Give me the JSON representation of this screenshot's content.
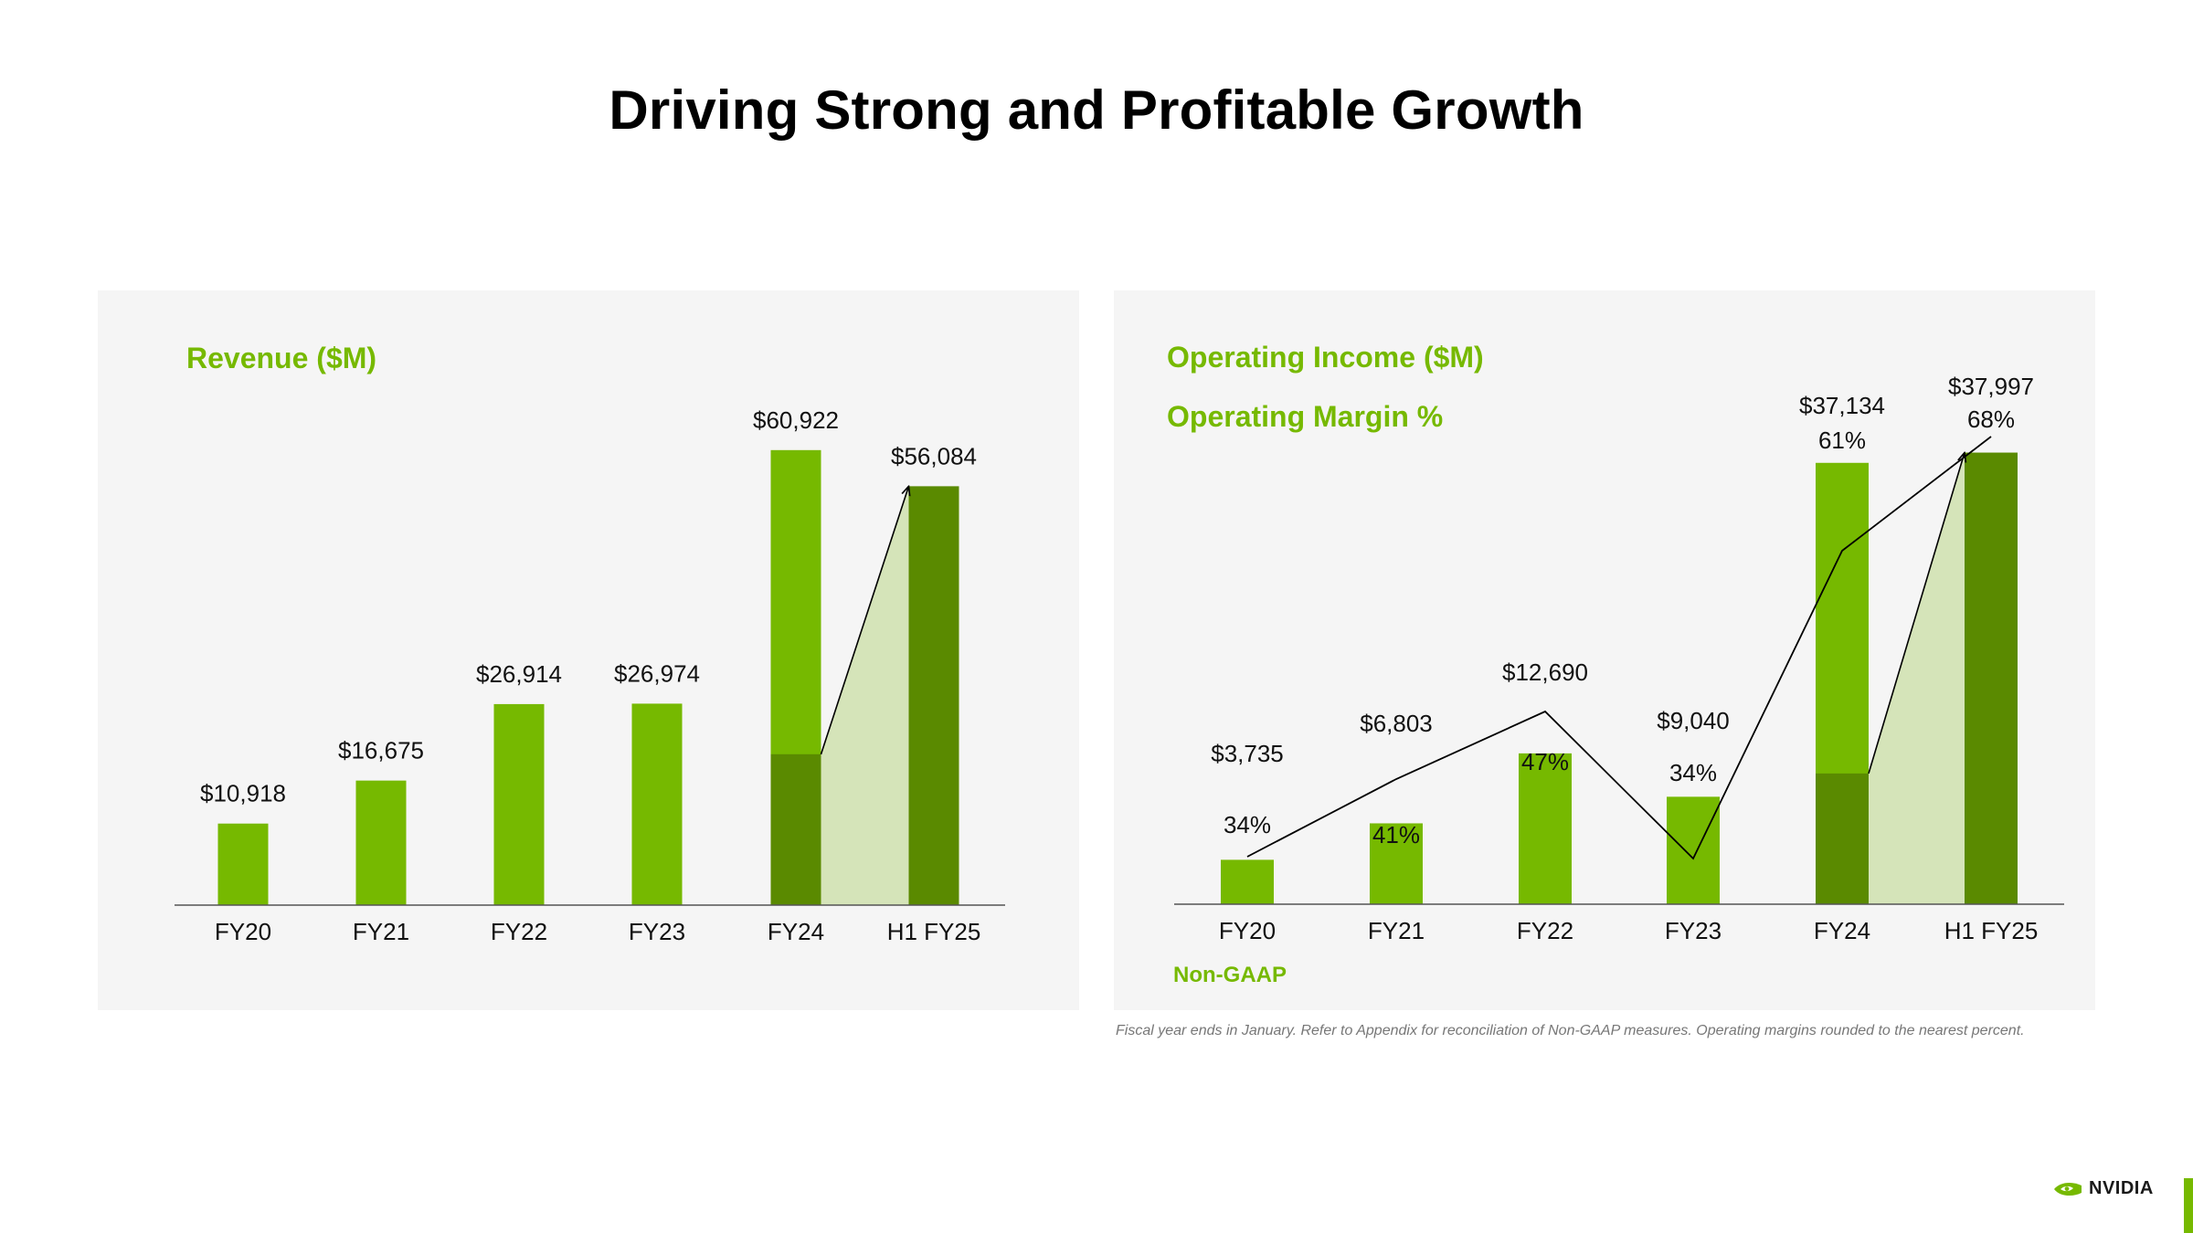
{
  "title": "Driving Strong and Profitable Growth",
  "footnote": "Fiscal year ends in January. Refer to Appendix for reconciliation of Non-GAAP measures. Operating margins rounded to the nearest percent.",
  "brand": {
    "name": "NVIDIA",
    "accent": "#76b900",
    "dark_green": "#5a8a00",
    "light_fill": "#d5e4b9"
  },
  "chart_data": [
    {
      "type": "bar",
      "title": "Revenue ($M)",
      "categories": [
        "FY20",
        "FY21",
        "FY22",
        "FY23",
        "FY24",
        "H1 FY25"
      ],
      "values": [
        10918,
        16675,
        26914,
        26974,
        60922,
        56084
      ],
      "value_labels": [
        "$10,918",
        "$16,675",
        "$26,914",
        "$26,974",
        "$60,922",
        "$56,084"
      ],
      "fy24_h1_portion": 20200,
      "ylim": [
        0,
        62000
      ],
      "grid": false
    },
    {
      "type": "bar",
      "title": "Operating Income ($M)",
      "subtitle": "Operating Margin %",
      "note": "Non-GAAP",
      "categories": [
        "FY20",
        "FY21",
        "FY22",
        "FY23",
        "FY24",
        "H1 FY25"
      ],
      "values": [
        3735,
        6803,
        12690,
        9040,
        37134,
        37997
      ],
      "value_labels": [
        "$3,735",
        "$6,803",
        "$12,690",
        "$9,040",
        "$37,134",
        "$37,997"
      ],
      "margins": [
        34,
        41,
        47,
        34,
        61,
        68
      ],
      "margin_labels": [
        "34%",
        "41%",
        "47%",
        "34%",
        "61%",
        "68%"
      ],
      "fy24_h1_portion": 11000,
      "ylim": [
        0,
        38500
      ],
      "margin_range": [
        0,
        100
      ],
      "grid": false
    }
  ]
}
